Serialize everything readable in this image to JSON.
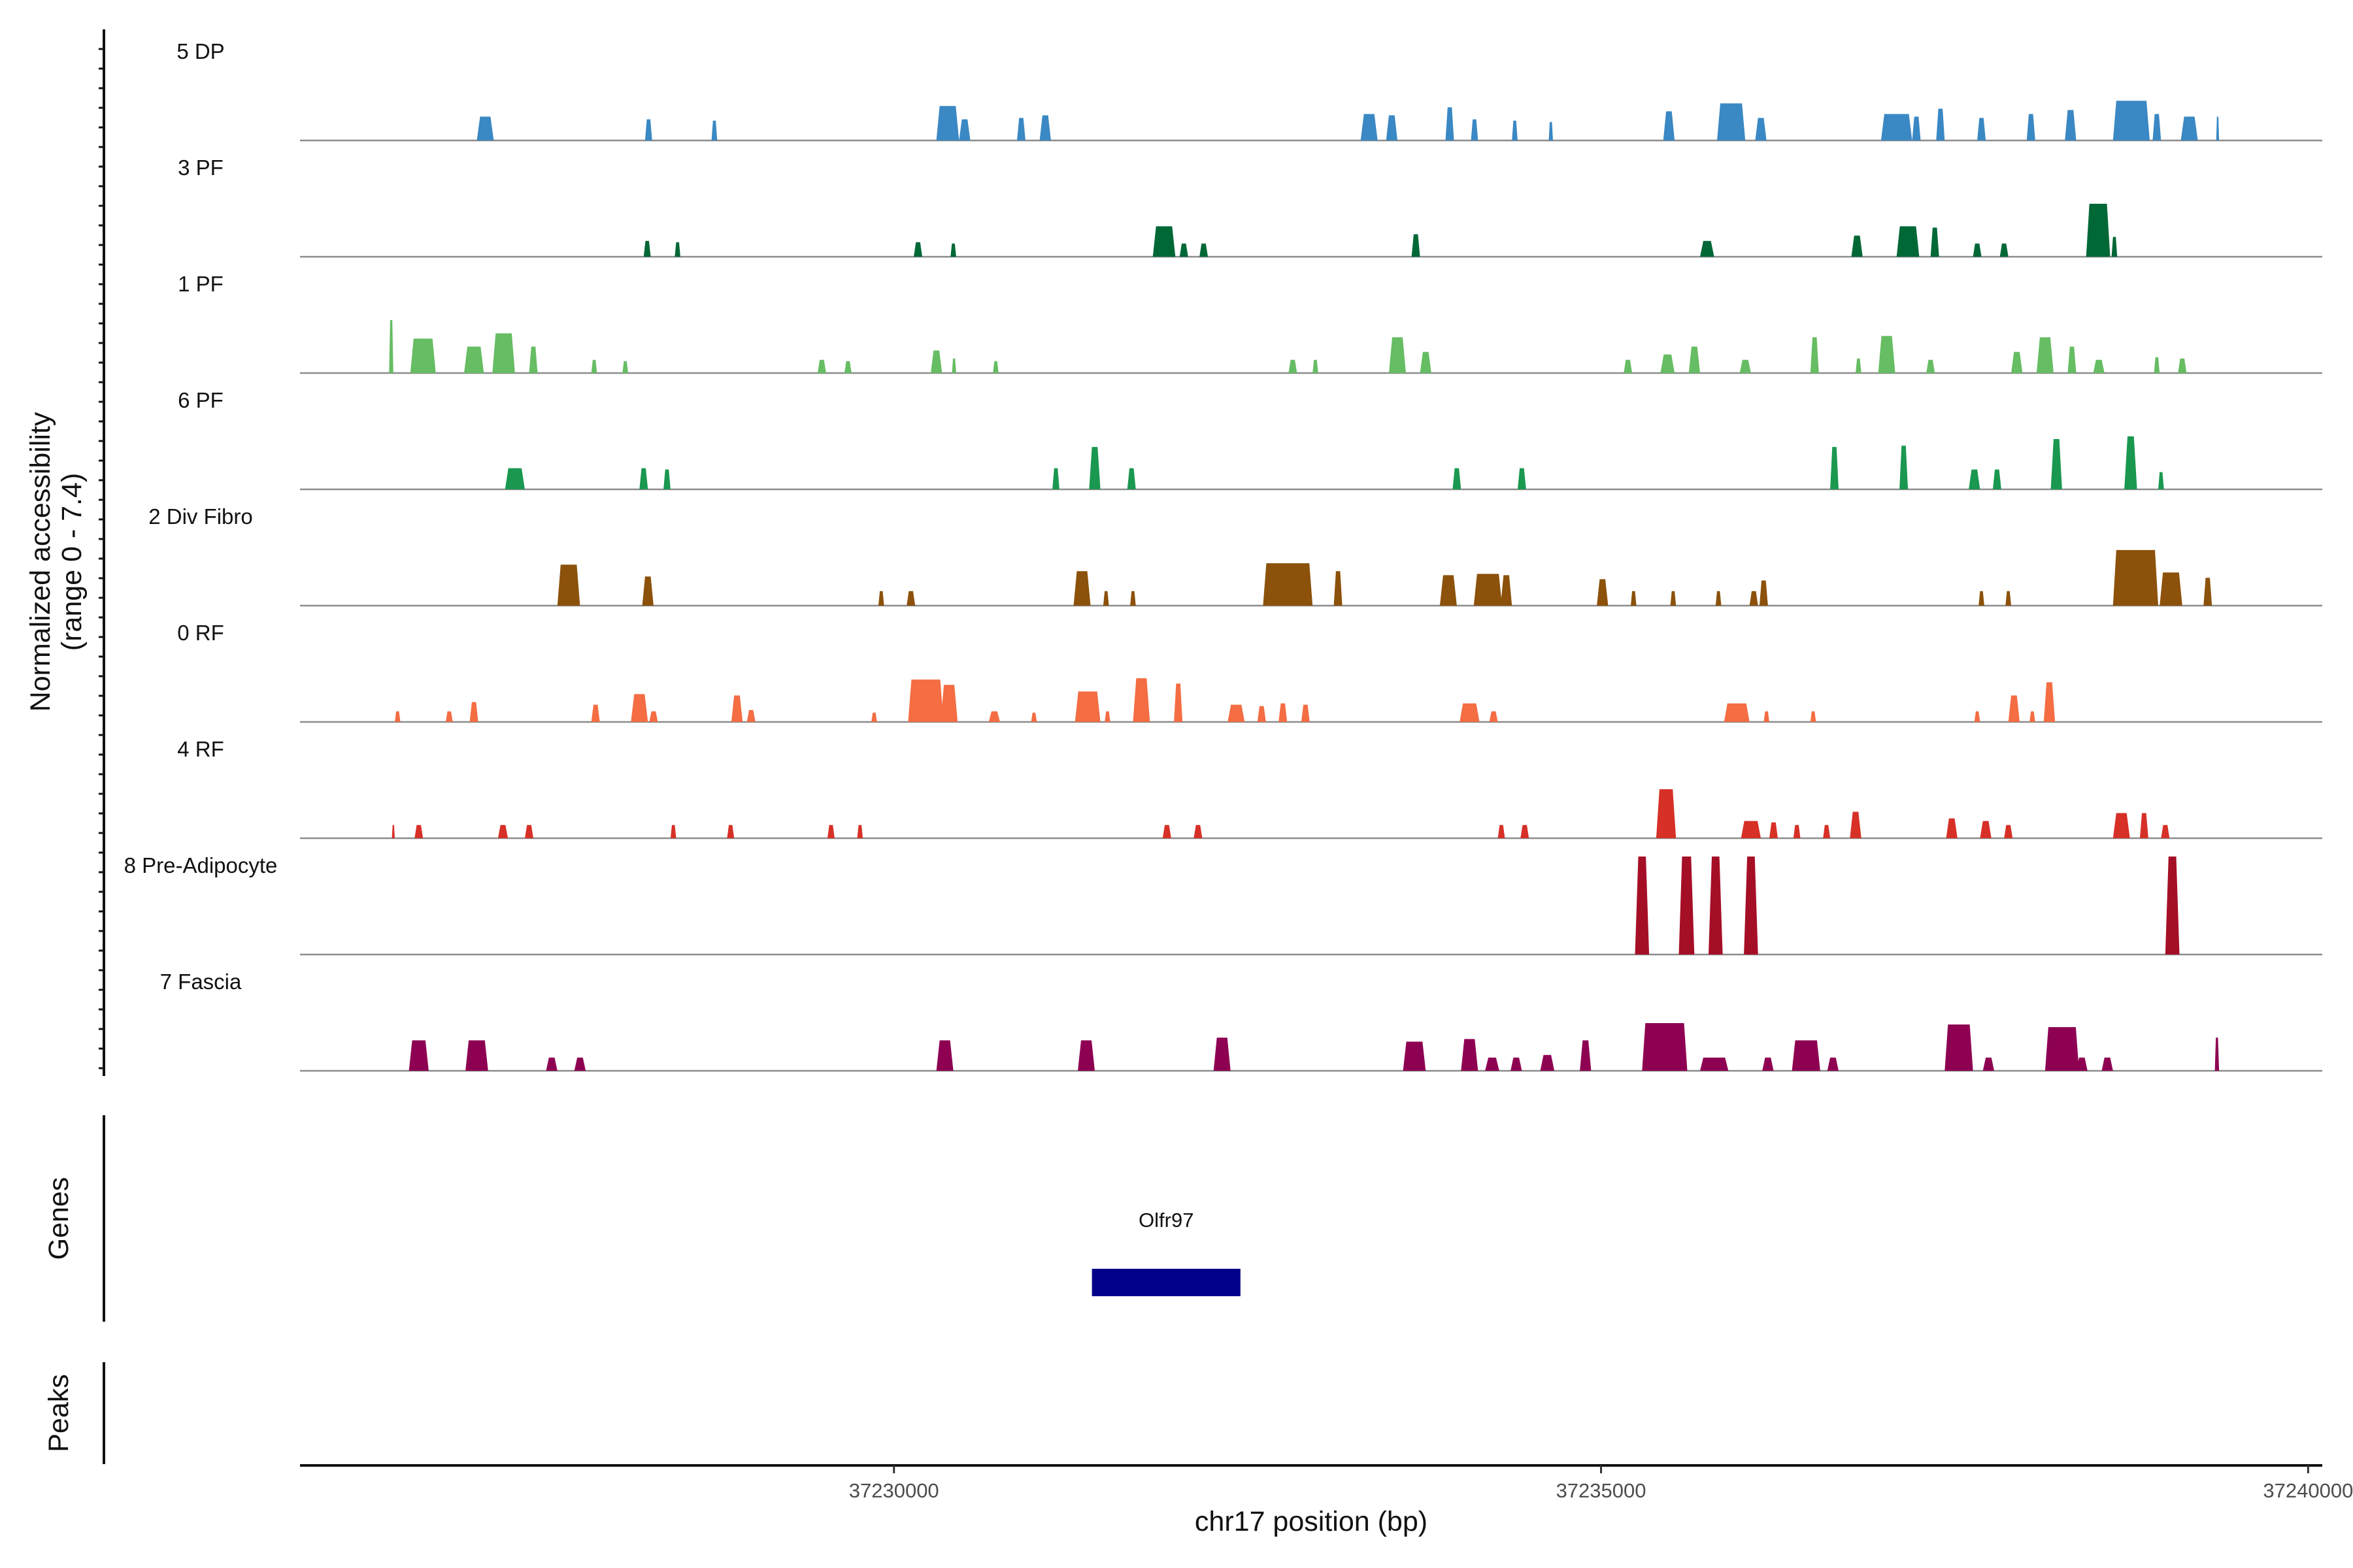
{
  "chart_data": {
    "type": "coverage-track",
    "y_axis_title_line1": "Normalized accessibility",
    "y_axis_title_line2": "(range 0 - 7.4)",
    "y_range": [
      0,
      7.4
    ],
    "x_axis_title": "chr17 position (bp)",
    "x_range": [
      37225800,
      37240100
    ],
    "x_ticks": [
      37230000,
      37235000,
      37240000
    ],
    "x_tick_labels": [
      "37230000",
      "37235000",
      "37240000"
    ],
    "tracks": [
      {
        "name": "5 DP",
        "color": "#3a88c4",
        "peaks": [
          [
            37227050,
            120,
            1.8
          ],
          [
            37228240,
            50,
            1.6
          ],
          [
            37228710,
            40,
            1.5
          ],
          [
            37230300,
            160,
            2.6
          ],
          [
            37230460,
            80,
            1.6
          ],
          [
            37230870,
            60,
            1.7
          ],
          [
            37231030,
            80,
            1.9
          ],
          [
            37233300,
            120,
            2.0
          ],
          [
            37233480,
            80,
            1.9
          ],
          [
            37233900,
            60,
            2.5
          ],
          [
            37234080,
            50,
            1.6
          ],
          [
            37234370,
            40,
            1.5
          ],
          [
            37234630,
            30,
            1.4
          ],
          [
            37235440,
            80,
            2.2
          ],
          [
            37235820,
            200,
            2.8
          ],
          [
            37236090,
            80,
            1.7
          ],
          [
            37236980,
            220,
            2.0
          ],
          [
            37237200,
            60,
            1.8
          ],
          [
            37237370,
            60,
            2.4
          ],
          [
            37237660,
            60,
            1.7
          ],
          [
            37238010,
            60,
            2.0
          ],
          [
            37238280,
            80,
            2.3
          ],
          [
            37238620,
            260,
            3.0
          ],
          [
            37238900,
            60,
            2.0
          ],
          [
            37239100,
            120,
            1.8
          ],
          [
            37239350,
            20,
            1.8
          ]
        ]
      },
      {
        "name": "3 PF",
        "color": "#006837",
        "peaks": [
          [
            37228230,
            50,
            1.2
          ],
          [
            37228450,
            40,
            1.1
          ],
          [
            37230140,
            60,
            1.1
          ],
          [
            37230400,
            40,
            1.0
          ],
          [
            37231830,
            160,
            2.3
          ],
          [
            37232020,
            60,
            1.0
          ],
          [
            37232160,
            60,
            1.0
          ],
          [
            37233660,
            60,
            1.7
          ],
          [
            37235700,
            100,
            1.2
          ],
          [
            37236770,
            80,
            1.6
          ],
          [
            37237090,
            160,
            2.3
          ],
          [
            37237330,
            60,
            2.2
          ],
          [
            37237630,
            60,
            1.0
          ],
          [
            37237820,
            60,
            1.0
          ],
          [
            37238430,
            170,
            4.0
          ],
          [
            37238610,
            40,
            1.5
          ]
        ]
      },
      {
        "name": "1 PF",
        "color": "#66bd63",
        "peaks": [
          [
            37226430,
            30,
            4.0
          ],
          [
            37226580,
            180,
            2.6
          ],
          [
            37226960,
            140,
            2.0
          ],
          [
            37227160,
            160,
            3.0
          ],
          [
            37227420,
            60,
            2.0
          ],
          [
            37227860,
            40,
            1.0
          ],
          [
            37228080,
            40,
            0.9
          ],
          [
            37229460,
            60,
            1.0
          ],
          [
            37229650,
            50,
            0.9
          ],
          [
            37230260,
            80,
            1.7
          ],
          [
            37230410,
            30,
            1.1
          ],
          [
            37230700,
            40,
            0.9
          ],
          [
            37232790,
            60,
            1.0
          ],
          [
            37232960,
            40,
            1.0
          ],
          [
            37233500,
            120,
            2.7
          ],
          [
            37233720,
            80,
            1.6
          ],
          [
            37235160,
            60,
            1.0
          ],
          [
            37235420,
            100,
            1.4
          ],
          [
            37235620,
            80,
            2.0
          ],
          [
            37235980,
            80,
            1.0
          ],
          [
            37236480,
            60,
            2.7
          ],
          [
            37236800,
            40,
            1.1
          ],
          [
            37236960,
            120,
            2.8
          ],
          [
            37237300,
            60,
            1.0
          ],
          [
            37237900,
            80,
            1.6
          ],
          [
            37238080,
            120,
            2.7
          ],
          [
            37238300,
            60,
            2.0
          ],
          [
            37238480,
            80,
            1.0
          ],
          [
            37238910,
            40,
            1.2
          ],
          [
            37239080,
            60,
            1.1
          ]
        ]
      },
      {
        "name": "6 PF",
        "color": "#1a9850",
        "peaks": [
          [
            37227250,
            140,
            1.6
          ],
          [
            37228200,
            60,
            1.6
          ],
          [
            37228370,
            50,
            1.5
          ],
          [
            37231120,
            50,
            1.6
          ],
          [
            37231380,
            80,
            3.2
          ],
          [
            37231650,
            60,
            1.6
          ],
          [
            37233950,
            60,
            1.6
          ],
          [
            37234410,
            60,
            1.6
          ],
          [
            37236620,
            60,
            3.2
          ],
          [
            37237110,
            60,
            3.3
          ],
          [
            37237600,
            80,
            1.5
          ],
          [
            37237770,
            60,
            1.5
          ],
          [
            37238180,
            80,
            3.8
          ],
          [
            37238700,
            90,
            4.0
          ],
          [
            37238940,
            40,
            1.3
          ]
        ]
      },
      {
        "name": "2 Div Fibro",
        "color": "#8c510a",
        "peaks": [
          [
            37227620,
            160,
            3.1
          ],
          [
            37228220,
            80,
            2.2
          ],
          [
            37229890,
            40,
            1.1
          ],
          [
            37230090,
            60,
            1.1
          ],
          [
            37231270,
            120,
            2.6
          ],
          [
            37231480,
            40,
            1.1
          ],
          [
            37231670,
            40,
            1.1
          ],
          [
            37232610,
            350,
            3.2
          ],
          [
            37233110,
            60,
            2.6
          ],
          [
            37233860,
            120,
            2.3
          ],
          [
            37234100,
            200,
            2.4
          ],
          [
            37234290,
            80,
            2.3
          ],
          [
            37234970,
            80,
            2.0
          ],
          [
            37235210,
            40,
            1.1
          ],
          [
            37235490,
            40,
            1.1
          ],
          [
            37235810,
            40,
            1.1
          ],
          [
            37236050,
            60,
            1.1
          ],
          [
            37236120,
            60,
            1.9
          ],
          [
            37237670,
            40,
            1.1
          ],
          [
            37237860,
            40,
            1.1
          ],
          [
            37238620,
            320,
            4.2
          ],
          [
            37238950,
            160,
            2.5
          ],
          [
            37239260,
            60,
            2.1
          ]
        ]
      },
      {
        "name": "0 RF",
        "color": "#f46d43",
        "peaks": [
          [
            37226470,
            40,
            0.8
          ],
          [
            37226830,
            50,
            0.8
          ],
          [
            37227000,
            60,
            1.5
          ],
          [
            37227860,
            60,
            1.3
          ],
          [
            37228140,
            120,
            2.1
          ],
          [
            37228270,
            60,
            0.8
          ],
          [
            37228850,
            80,
            2.0
          ],
          [
            37228960,
            60,
            0.9
          ],
          [
            37229840,
            40,
            0.7
          ],
          [
            37230100,
            250,
            3.2
          ],
          [
            37230330,
            120,
            2.8
          ],
          [
            37230670,
            80,
            0.8
          ],
          [
            37230970,
            40,
            0.7
          ],
          [
            37231280,
            180,
            2.3
          ],
          [
            37231490,
            40,
            0.8
          ],
          [
            37231690,
            120,
            3.3
          ],
          [
            37231980,
            60,
            2.9
          ],
          [
            37232360,
            120,
            1.3
          ],
          [
            37232570,
            60,
            1.2
          ],
          [
            37232720,
            60,
            1.4
          ],
          [
            37232880,
            60,
            1.3
          ],
          [
            37234000,
            140,
            1.4
          ],
          [
            37234210,
            60,
            0.8
          ],
          [
            37235870,
            180,
            1.4
          ],
          [
            37236150,
            40,
            0.8
          ],
          [
            37236480,
            40,
            0.8
          ],
          [
            37237640,
            40,
            0.8
          ],
          [
            37237880,
            80,
            2.0
          ],
          [
            37238030,
            40,
            0.8
          ],
          [
            37238130,
            80,
            3.0
          ]
        ]
      },
      {
        "name": "4 RF",
        "color": "#d73027",
        "peaks": [
          [
            37226450,
            20,
            1.0
          ],
          [
            37226610,
            60,
            1.0
          ],
          [
            37227200,
            70,
            1.0
          ],
          [
            37227390,
            60,
            1.0
          ],
          [
            37228420,
            40,
            1.0
          ],
          [
            37228820,
            50,
            1.0
          ],
          [
            37229530,
            50,
            1.0
          ],
          [
            37229740,
            40,
            1.0
          ],
          [
            37231900,
            60,
            1.0
          ],
          [
            37232120,
            60,
            1.0
          ],
          [
            37234270,
            50,
            1.0
          ],
          [
            37234430,
            60,
            1.0
          ],
          [
            37235390,
            140,
            3.7
          ],
          [
            37235990,
            140,
            1.3
          ],
          [
            37236190,
            60,
            1.2
          ],
          [
            37236360,
            50,
            1.0
          ],
          [
            37236570,
            50,
            1.0
          ],
          [
            37236760,
            80,
            2.0
          ],
          [
            37237440,
            80,
            1.5
          ],
          [
            37237680,
            80,
            1.3
          ],
          [
            37237850,
            60,
            1.0
          ],
          [
            37238620,
            120,
            1.9
          ],
          [
            37238810,
            60,
            1.9
          ],
          [
            37238960,
            60,
            1.0
          ]
        ]
      },
      {
        "name": "8 Pre-Adipocyte",
        "color": "#a50f26",
        "peaks": [
          [
            37235240,
            100,
            7.4
          ],
          [
            37235550,
            110,
            7.4
          ],
          [
            37235760,
            100,
            7.4
          ],
          [
            37236010,
            100,
            7.4
          ],
          [
            37238990,
            100,
            7.4
          ]
        ]
      },
      {
        "name": "7 Fascia",
        "color": "#8e0152",
        "peaks": [
          [
            37226570,
            140,
            2.3
          ],
          [
            37226970,
            160,
            2.3
          ],
          [
            37227540,
            80,
            1.0
          ],
          [
            37227740,
            80,
            1.0
          ],
          [
            37230300,
            120,
            2.3
          ],
          [
            37231300,
            120,
            2.3
          ],
          [
            37232260,
            120,
            2.5
          ],
          [
            37233600,
            160,
            2.2
          ],
          [
            37234010,
            120,
            2.4
          ],
          [
            37234180,
            100,
            1.0
          ],
          [
            37234360,
            80,
            1.0
          ],
          [
            37234570,
            100,
            1.2
          ],
          [
            37234850,
            80,
            2.3
          ],
          [
            37235290,
            320,
            3.6
          ],
          [
            37235700,
            200,
            1.0
          ],
          [
            37236140,
            80,
            1.0
          ],
          [
            37236350,
            200,
            2.3
          ],
          [
            37236600,
            80,
            1.0
          ],
          [
            37237430,
            200,
            3.5
          ],
          [
            37237700,
            80,
            1.0
          ],
          [
            37238140,
            240,
            3.3
          ],
          [
            37238360,
            80,
            1.0
          ],
          [
            37238540,
            80,
            1.0
          ],
          [
            37239340,
            30,
            2.5
          ]
        ]
      }
    ],
    "genes": [
      {
        "name": "Olfr97",
        "start": 37231400,
        "end": 37232450,
        "color": "#00008b"
      }
    ],
    "genes_panel_title": "Genes",
    "peaks_panel_title": "Peaks"
  }
}
